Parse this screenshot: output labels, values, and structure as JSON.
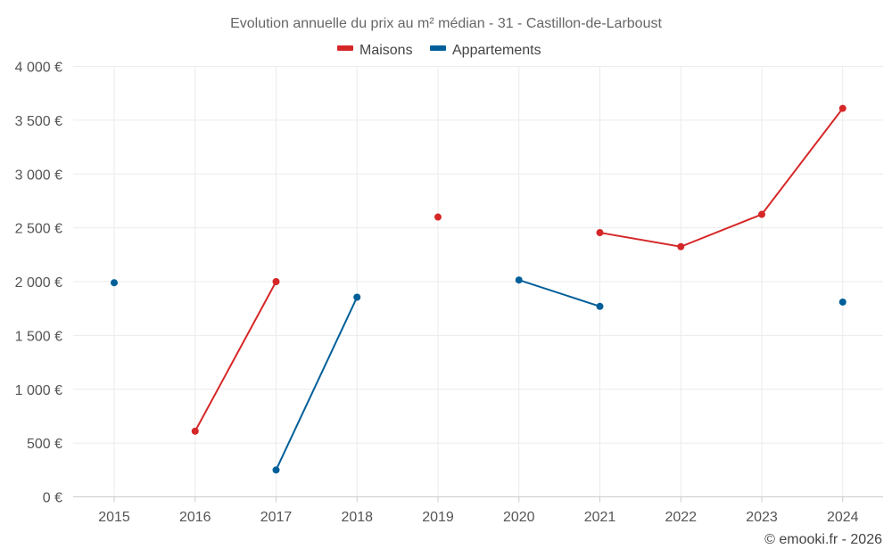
{
  "chart_data": {
    "type": "line",
    "title": "Evolution annuelle du prix au m² médian - 31 - Castillon-de-Larboust",
    "categories": [
      "2015",
      "2016",
      "2017",
      "2018",
      "2019",
      "2020",
      "2021",
      "2022",
      "2023",
      "2024"
    ],
    "series": [
      {
        "name": "Maisons",
        "color": "#d62728",
        "values": [
          null,
          610,
          2000,
          null,
          2600,
          null,
          2455,
          2325,
          2625,
          3610
        ]
      },
      {
        "name": "Appartements",
        "color": "#005f99",
        "values": [
          1990,
          null,
          250,
          1855,
          null,
          2015,
          1770,
          null,
          null,
          1810
        ]
      }
    ],
    "ylim": [
      0,
      4000
    ],
    "yticks": [
      {
        "value": 0,
        "label": "0 €"
      },
      {
        "value": 500,
        "label": "500 €"
      },
      {
        "value": 1000,
        "label": "1 000 €"
      },
      {
        "value": 1500,
        "label": "1 500 €"
      },
      {
        "value": 2000,
        "label": "2 000 €"
      },
      {
        "value": 2500,
        "label": "2 500 €"
      },
      {
        "value": 3000,
        "label": "3 000 €"
      },
      {
        "value": 3500,
        "label": "3 500 €"
      },
      {
        "value": 4000,
        "label": "4 000 €"
      }
    ],
    "xlabel": "",
    "ylabel": "",
    "grid": true,
    "legend_position": "top-center"
  },
  "credit": "© emooki.fr - 2026"
}
